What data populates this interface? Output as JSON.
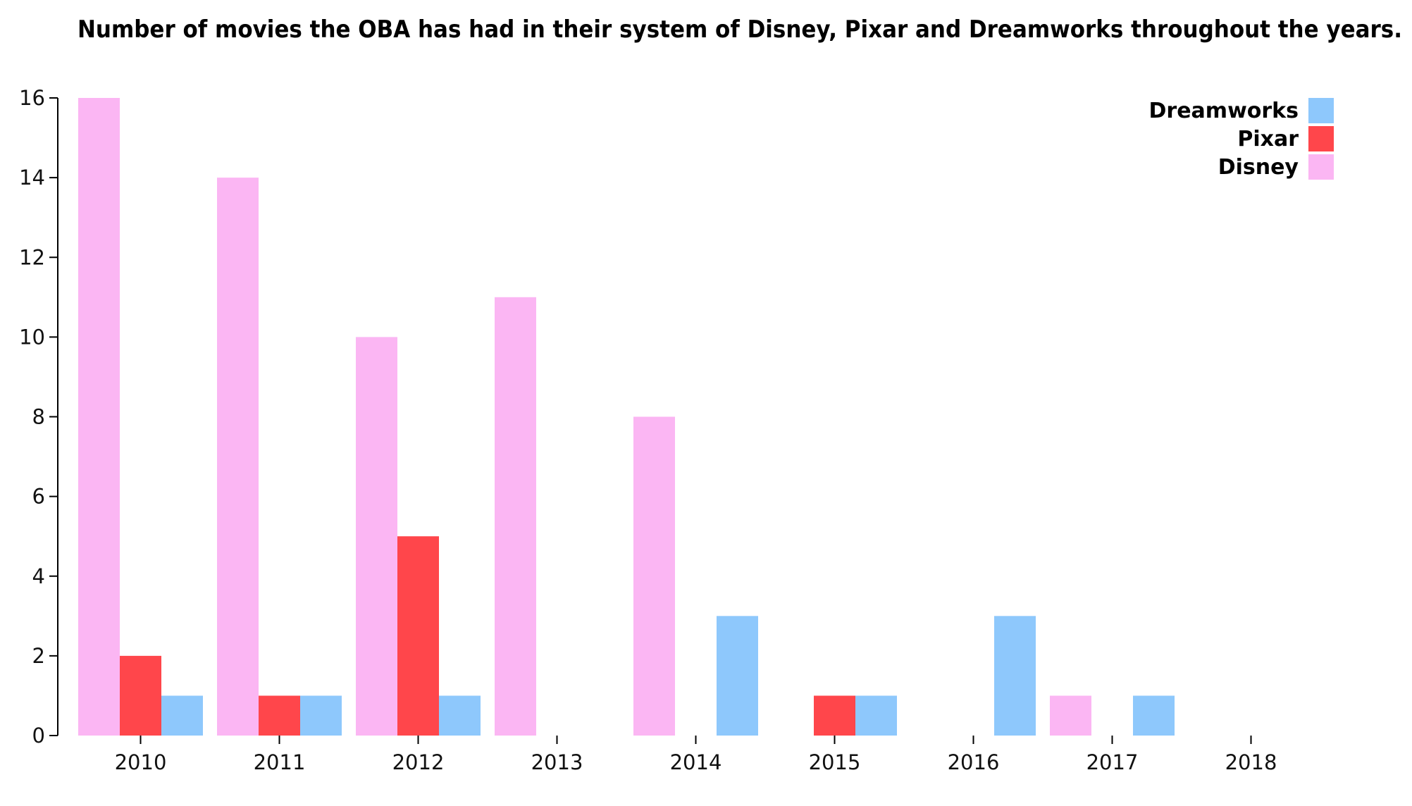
{
  "chart_data": {
    "type": "bar",
    "title": "Number of movies the OBA has had in their system of Disney, Pixar and Dreamworks throughout the years.",
    "xlabel": "",
    "ylabel": "",
    "categories": [
      "2010",
      "2011",
      "2012",
      "2013",
      "2014",
      "2015",
      "2016",
      "2017",
      "2018"
    ],
    "series": [
      {
        "name": "Disney",
        "color": "#fbb6f3",
        "values": [
          16,
          14,
          10,
          11,
          8,
          0,
          0,
          1,
          0
        ]
      },
      {
        "name": "Pixar",
        "color": "#ff464b",
        "values": [
          2,
          1,
          5,
          0,
          0,
          1,
          0,
          0,
          0
        ]
      },
      {
        "name": "Dreamworks",
        "color": "#8ec8fc",
        "values": [
          1,
          1,
          1,
          0,
          3,
          1,
          3,
          1,
          0
        ]
      }
    ],
    "ylim": [
      0,
      16
    ],
    "yticks": [
      "0",
      "2",
      "4",
      "6",
      "8",
      "10",
      "12",
      "14",
      "16"
    ],
    "grid": false,
    "legend": {
      "placement": "top-right",
      "entries": [
        {
          "label": "Dreamworks",
          "color": "#8ec8fc"
        },
        {
          "label": "Pixar",
          "color": "#ff464b"
        },
        {
          "label": "Disney",
          "color": "#fbb6f3"
        }
      ]
    }
  }
}
